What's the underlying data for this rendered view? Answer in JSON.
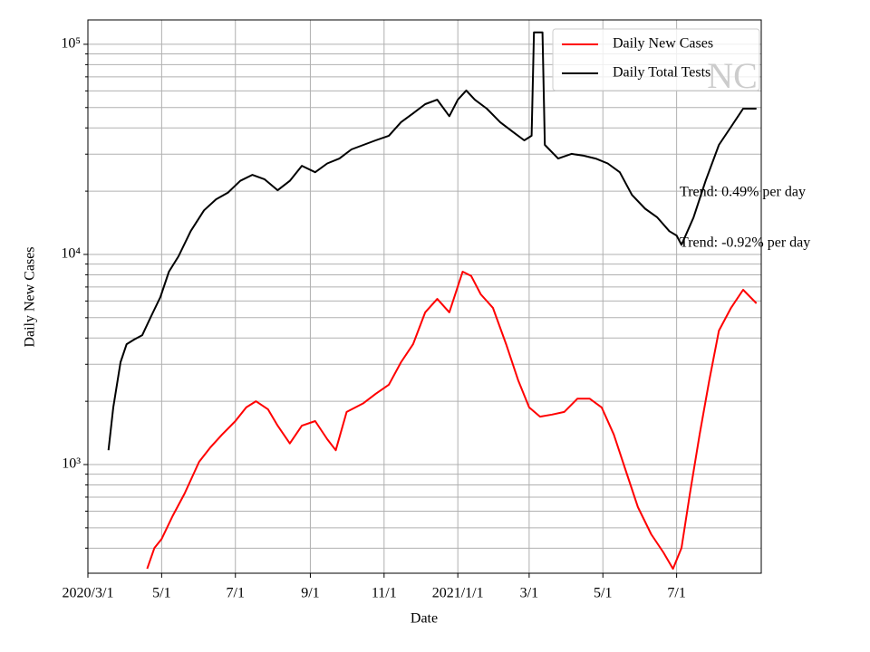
{
  "chart_data": {
    "type": "line",
    "xlabel": "Date",
    "ylabel": "Daily New Cases",
    "log_y": true,
    "grid": true,
    "legend": "upper right",
    "xlim": [
      "2020-03-01",
      "2021-09-09"
    ],
    "xticks": [
      {
        "value": "2020-03-01",
        "label": "2020/3/1"
      },
      {
        "value": "2020-05-01",
        "label": "5/1"
      },
      {
        "value": "2020-07-01",
        "label": "7/1"
      },
      {
        "value": "2020-09-01",
        "label": "9/1"
      },
      {
        "value": "2020-11-01",
        "label": "11/1"
      },
      {
        "value": "2021-01-01",
        "label": "2021/1/1"
      },
      {
        "value": "2021-03-01",
        "label": "3/1"
      },
      {
        "value": "2021-05-01",
        "label": "5/1"
      },
      {
        "value": "2021-07-01",
        "label": "7/1"
      }
    ],
    "ylim": [
      304,
      130600
    ],
    "yticks": [
      {
        "value": 1000,
        "label": "10³"
      },
      {
        "value": 10000,
        "label": "10⁴"
      },
      {
        "value": 100000,
        "label": "10⁵"
      }
    ],
    "minor_yticks": [
      400,
      500,
      600,
      700,
      800,
      900,
      2000,
      3000,
      4000,
      5000,
      6000,
      7000,
      8000,
      9000,
      20000,
      30000,
      40000,
      50000,
      60000,
      70000,
      80000,
      90000
    ],
    "annotations": [
      "NC",
      "Trend: 0.49% per day",
      "Trend: -0.92% per day"
    ],
    "series": [
      {
        "name": "Daily New Cases",
        "color": "#ff0000",
        "x": [
          "2020-04-19",
          "2020-04-25",
          "2020-05-01",
          "2020-05-10",
          "2020-05-20",
          "2020-06-01",
          "2020-06-10",
          "2020-06-20",
          "2020-07-01",
          "2020-07-10",
          "2020-07-18",
          "2020-07-28",
          "2020-08-05",
          "2020-08-15",
          "2020-08-25",
          "2020-09-05",
          "2020-09-15",
          "2020-09-22",
          "2020-10-01",
          "2020-10-15",
          "2020-10-25",
          "2020-11-05",
          "2020-11-15",
          "2020-11-25",
          "2020-12-05",
          "2020-12-15",
          "2020-12-25",
          "2021-01-05",
          "2021-01-12",
          "2021-01-20",
          "2021-01-30",
          "2021-02-10",
          "2021-02-20",
          "2021-03-01",
          "2021-03-10",
          "2021-03-20",
          "2021-03-30",
          "2021-04-10",
          "2021-04-20",
          "2021-04-30",
          "2021-05-10",
          "2021-05-20",
          "2021-05-30",
          "2021-06-10",
          "2021-06-20",
          "2021-06-28",
          "2021-07-05",
          "2021-07-12",
          "2021-07-20",
          "2021-07-28",
          "2021-08-05",
          "2021-08-15",
          "2021-08-25",
          "2021-09-05"
        ],
        "values": [
          319,
          401,
          443,
          568,
          728,
          1030,
          1200,
          1390,
          1610,
          1870,
          2000,
          1830,
          1530,
          1260,
          1530,
          1610,
          1320,
          1170,
          1780,
          1960,
          2170,
          2400,
          3070,
          3740,
          5300,
          6140,
          5300,
          8280,
          7900,
          6460,
          5570,
          3740,
          2510,
          1870,
          1690,
          1730,
          1780,
          2060,
          2060,
          1870,
          1390,
          933,
          627,
          466,
          382,
          319,
          401,
          728,
          1390,
          2510,
          4340,
          5570,
          6790,
          5850
        ]
      },
      {
        "name": "Daily Total Tests",
        "color": "#000000",
        "x": [
          "2020-03-18",
          "2020-03-22",
          "2020-03-28",
          "2020-04-02",
          "2020-04-08",
          "2020-04-15",
          "2020-04-22",
          "2020-04-30",
          "2020-05-07",
          "2020-05-15",
          "2020-05-25",
          "2020-06-05",
          "2020-06-15",
          "2020-06-25",
          "2020-07-05",
          "2020-07-15",
          "2020-07-25",
          "2020-08-05",
          "2020-08-15",
          "2020-08-25",
          "2020-09-05",
          "2020-09-15",
          "2020-09-25",
          "2020-10-05",
          "2020-10-15",
          "2020-10-25",
          "2020-11-05",
          "2020-11-15",
          "2020-11-25",
          "2020-12-05",
          "2020-12-15",
          "2020-12-25",
          "2021-01-01",
          "2021-01-08",
          "2021-01-15",
          "2021-01-25",
          "2021-02-05",
          "2021-02-15",
          "2021-02-25",
          "2021-03-03",
          "2021-03-05",
          "2021-03-12",
          "2021-03-14",
          "2021-03-25",
          "2021-04-05",
          "2021-04-15",
          "2021-04-25",
          "2021-05-05",
          "2021-05-15",
          "2021-05-25",
          "2021-06-05",
          "2021-06-15",
          "2021-06-25",
          "2021-07-01",
          "2021-07-05",
          "2021-07-15",
          "2021-07-25",
          "2021-08-05",
          "2021-08-15",
          "2021-08-25",
          "2021-09-05"
        ],
        "values": [
          1170,
          1870,
          3070,
          3740,
          3930,
          4130,
          5040,
          6270,
          8280,
          9800,
          12900,
          16200,
          18300,
          19700,
          22400,
          23900,
          22800,
          20200,
          22400,
          26400,
          24600,
          27100,
          28600,
          31600,
          33200,
          34900,
          36700,
          42600,
          46900,
          51900,
          54500,
          45500,
          54500,
          60300,
          54500,
          49400,
          42600,
          38500,
          34900,
          36700,
          114000,
          114000,
          33200,
          28600,
          30100,
          29500,
          28600,
          27100,
          24600,
          19200,
          16500,
          15000,
          12900,
          12300,
          11100,
          15000,
          22400,
          33200,
          40500,
          49400,
          49400
        ]
      }
    ]
  }
}
